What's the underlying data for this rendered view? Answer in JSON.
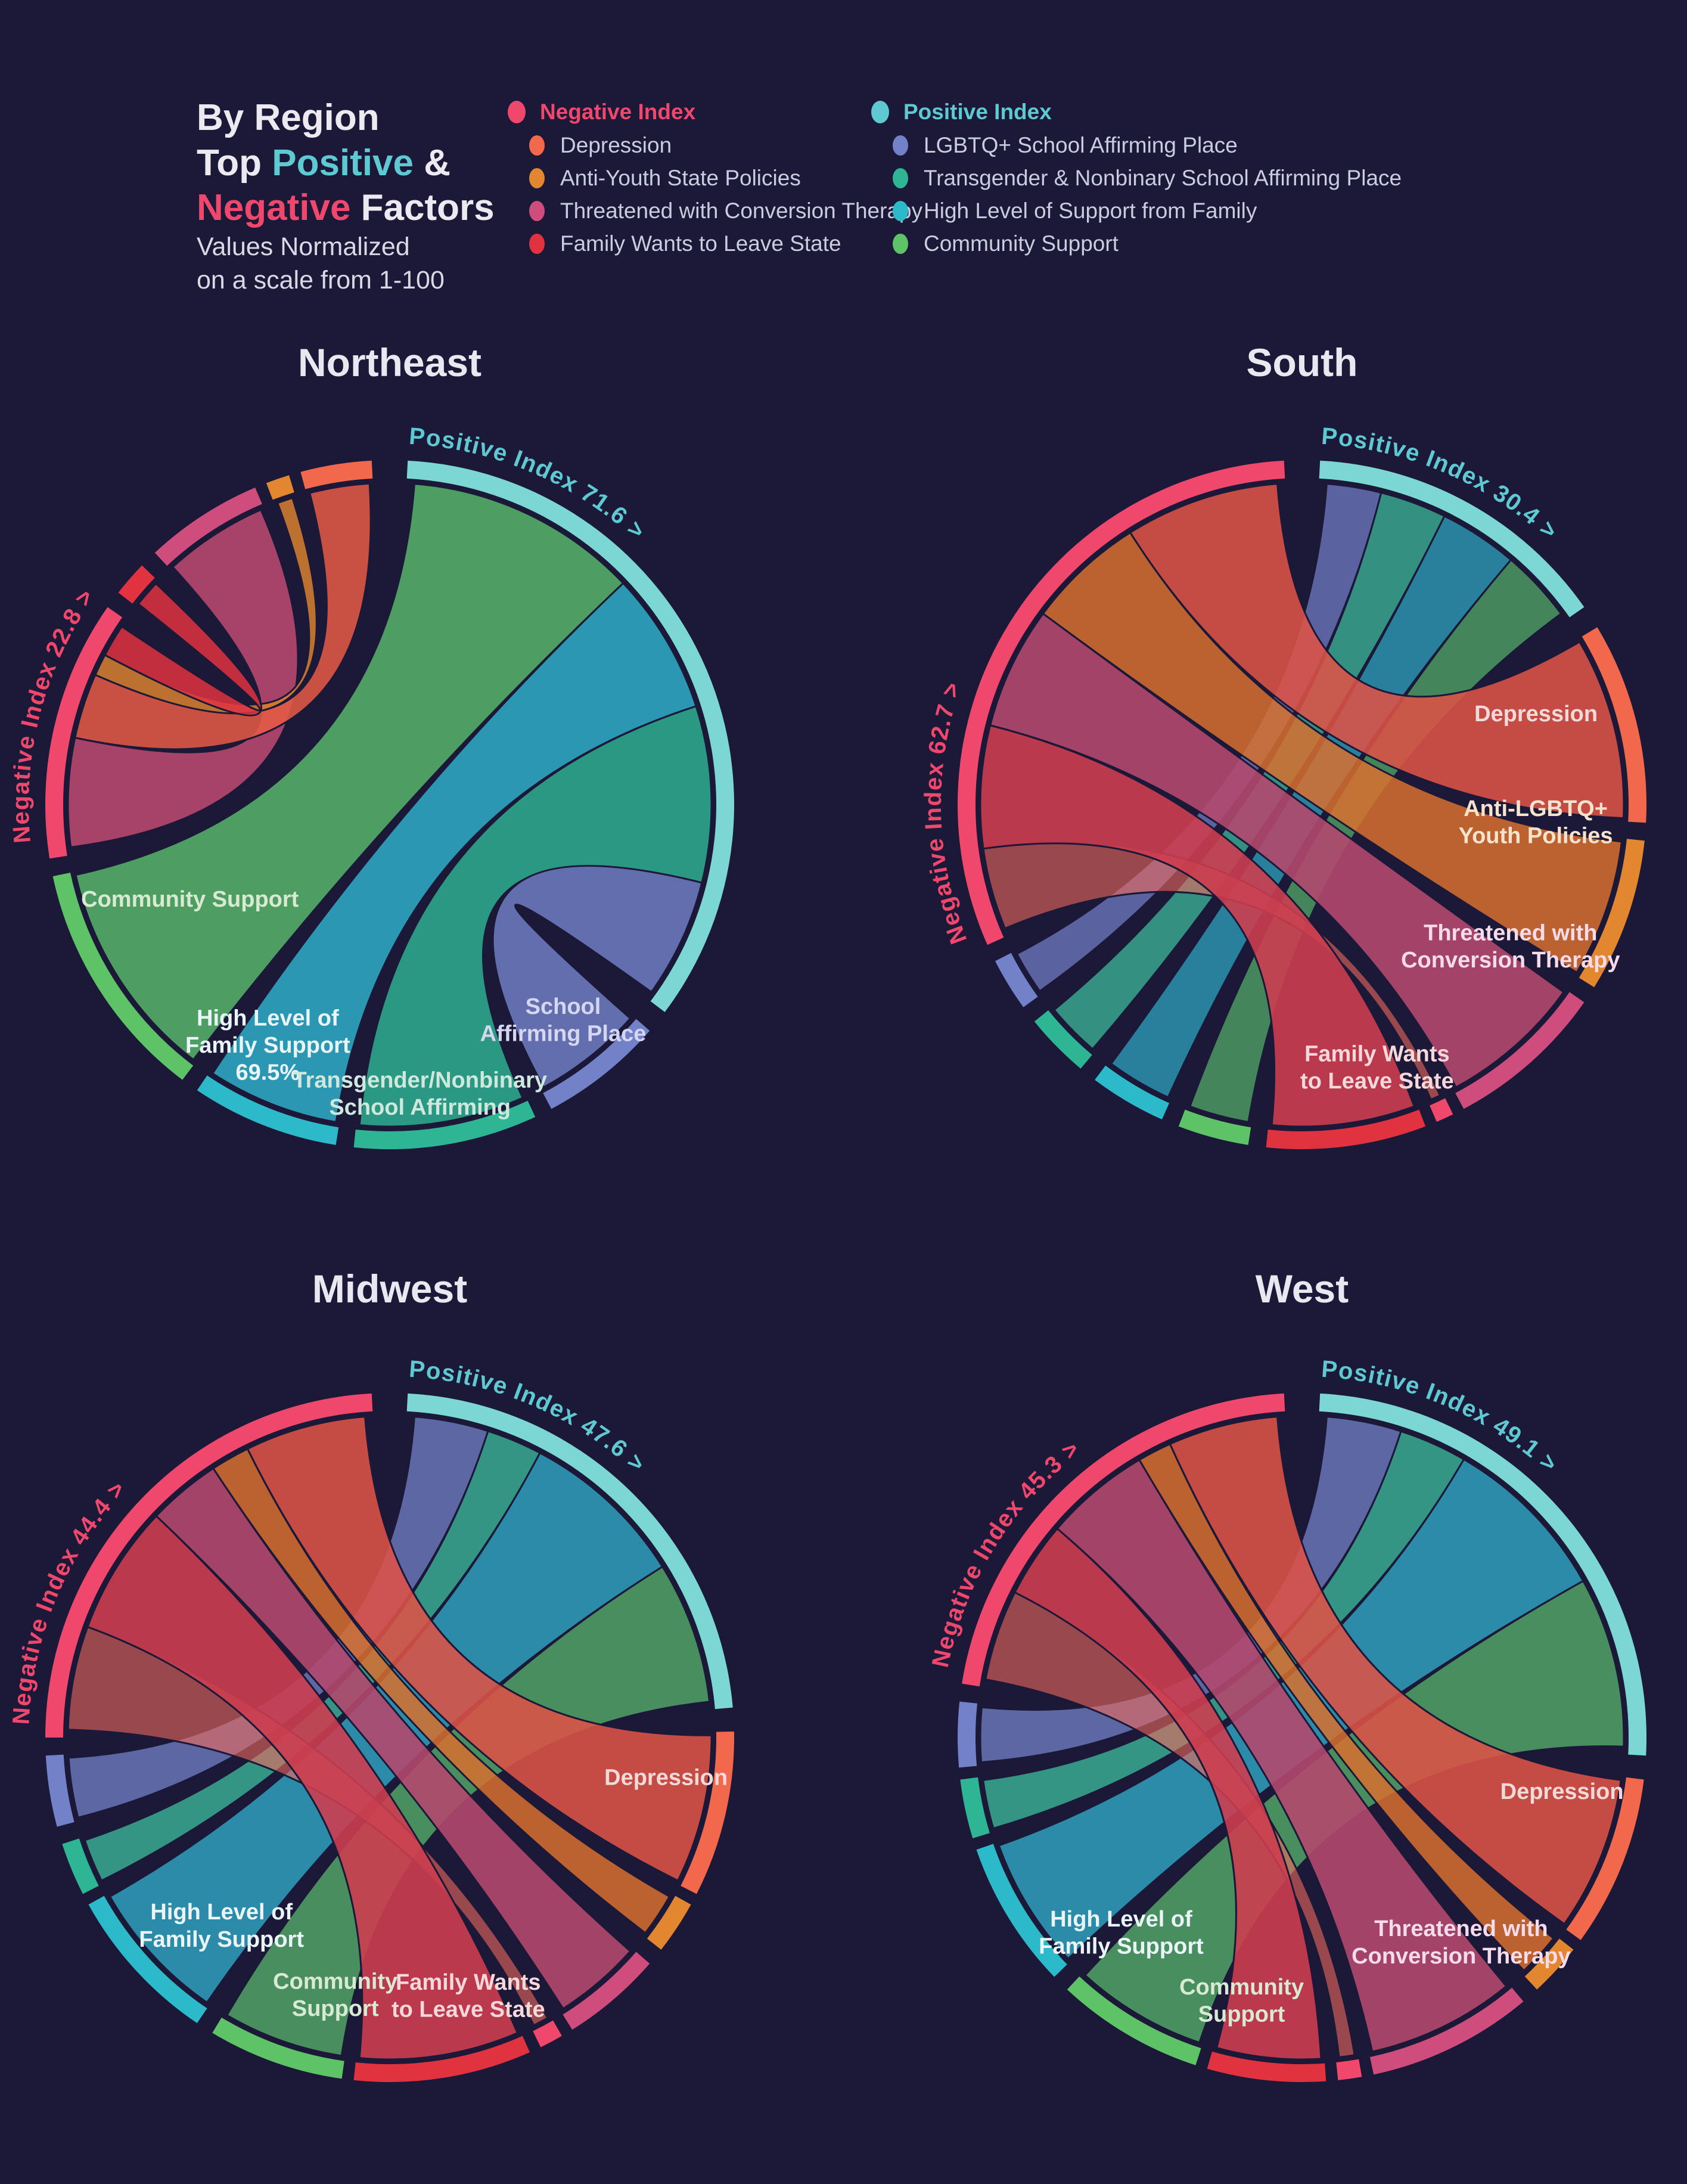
{
  "colors": {
    "background": "#1b1838",
    "teal": "#5fc9d2",
    "pink": "#f0486c",
    "white": "#eceaf0"
  },
  "header": {
    "l1": "By Region",
    "l2a": "Top ",
    "l2b": "Positive",
    "l2c": " &",
    "l3a": "Negative",
    "l3b": " Factors",
    "sub1": "Values Normalized",
    "sub2": "on a scale from 1-100"
  },
  "legend": {
    "negative": {
      "header": "Negative Index",
      "color": "#f0486c",
      "items": [
        {
          "label": "Depression",
          "color": "#f2684c"
        },
        {
          "label": "Anti-Youth State Policies",
          "color": "#e2862f"
        },
        {
          "label": "Threatened with Conversion Therapy",
          "color": "#cf4d7d"
        },
        {
          "label": "Family Wants to Leave State",
          "color": "#e0333f"
        }
      ]
    },
    "positive": {
      "header": "Positive Index",
      "color": "#5fc9d2",
      "items": [
        {
          "label": "LGBTQ+ School Affirming Place",
          "color": "#7381c8"
        },
        {
          "label": "Transgender & Nonbinary School Affirming Place",
          "color": "#2eb593"
        },
        {
          "label": "High Level of Support from Family",
          "color": "#2cb9ca"
        },
        {
          "label": "Community Support",
          "color": "#5ec266"
        }
      ]
    }
  },
  "chart_data": {
    "type": "chord",
    "title": "By Region Top Positive & Negative Factors",
    "note": "Values Normalized on a scale from 1-100",
    "regions": [
      {
        "key": "northeast",
        "name": "Northeast",
        "positive_index": 71.6,
        "negative_index": 22.8,
        "pos_label": "Positive Index 71.6 >",
        "neg_label": "Negative Index 22.8 >",
        "pos_label_start": 3,
        "neg_label_start": 264,
        "arcs": [
          {
            "id": "pos",
            "color": "#7cd7d4",
            "a0": 3,
            "a1": 127
          },
          {
            "id": "school_affirming",
            "color": "#7381c8",
            "a0": 131,
            "a1": 152
          },
          {
            "id": "transgender",
            "color": "#2eb593",
            "a0": 155,
            "a1": 186
          },
          {
            "id": "family_support",
            "color": "#2cb9ca",
            "a0": 189,
            "a1": 214
          },
          {
            "id": "community",
            "color": "#5ec266",
            "a0": 217,
            "a1": 258
          },
          {
            "id": "neg",
            "color": "#f0486c",
            "a0": 261,
            "a1": 305
          },
          {
            "id": "family_leave",
            "color": "#e0333f",
            "a0": 308,
            "a1": 314
          },
          {
            "id": "threatened",
            "color": "#cf4d7d",
            "a0": 317,
            "a1": 337
          },
          {
            "id": "anti",
            "color": "#e2862f",
            "a0": 339,
            "a1": 343
          },
          {
            "id": "depression",
            "color": "#f2684c",
            "a0": 345,
            "a1": 357
          }
        ],
        "ribbons": [
          {
            "from": "community",
            "to": "pos",
            "color": "#55b06a",
            "opacity": 0.88
          },
          {
            "from": "family_support",
            "to": "pos",
            "color": "#2fa9c4",
            "opacity": 0.88
          },
          {
            "from": "transgender",
            "to": "pos",
            "color": "#2eb593",
            "opacity": 0.82
          },
          {
            "from": "school_affirming",
            "to": "pos",
            "color": "#7381c8",
            "opacity": 0.82
          },
          {
            "from": "threatened",
            "to": "neg",
            "color": "#b3486e",
            "opacity": 0.92
          },
          {
            "from": "depression",
            "to": "neg",
            "color": "#e85c45",
            "opacity": 0.85
          },
          {
            "from": "anti",
            "to": "neg",
            "color": "#d8812f",
            "opacity": 0.85
          },
          {
            "from": "family_leave",
            "to": "neg",
            "color": "#e0333f",
            "opacity": 0.85
          }
        ],
        "labels": [
          {
            "lines": [
              "Community Support"
            ],
            "angle": 245,
            "rf": 0.64,
            "color": "#d9ead2"
          },
          {
            "lines": [
              "High Level of",
              "Family Support",
              "69.5%"
            ],
            "angle": 207,
            "rf": 0.78,
            "color": "#e9f5f9"
          },
          {
            "lines": [
              "Transgender/Nonbinary",
              "School Affirming"
            ],
            "angle": 174,
            "rf": 0.84,
            "color": "#cfe8de"
          },
          {
            "lines": [
              "School",
              "Affirming Place"
            ],
            "angle": 141,
            "rf": 0.8,
            "color": "#d4d7ef"
          }
        ]
      },
      {
        "key": "south",
        "name": "South",
        "positive_index": 30.4,
        "negative_index": 62.7,
        "pos_label": "Positive Index 30.4 >",
        "neg_label": "Negative Index 62.7 >",
        "pos_label_start": 3,
        "neg_label_start": 248,
        "arcs": [
          {
            "id": "pos",
            "color": "#7cd7d4",
            "a0": 3,
            "a1": 55
          },
          {
            "id": "depression",
            "color": "#f2684c",
            "a0": 59,
            "a1": 93
          },
          {
            "id": "anti",
            "color": "#e2862f",
            "a0": 96,
            "a1": 122
          },
          {
            "id": "threatened",
            "color": "#cf4d7d",
            "a0": 125,
            "a1": 152
          },
          {
            "id": "pinkseg",
            "color": "#f0486c",
            "a0": 154,
            "a1": 157
          },
          {
            "id": "family_leave",
            "color": "#e0333f",
            "a0": 159,
            "a1": 186
          },
          {
            "id": "community",
            "color": "#5ec266",
            "a0": 189,
            "a1": 201
          },
          {
            "id": "family_support",
            "color": "#2cb9ca",
            "a0": 204,
            "a1": 217
          },
          {
            "id": "transgender",
            "color": "#2eb593",
            "a0": 220,
            "a1": 231
          },
          {
            "id": "school_affirming",
            "color": "#7381c8",
            "a0": 234,
            "a1": 243
          },
          {
            "id": "neg",
            "color": "#f0486c",
            "a0": 246,
            "a1": 357
          }
        ],
        "ribbons": [
          {
            "from": "school_affirming",
            "to": "pos",
            "color": "#7381c8",
            "opacity": 0.72
          },
          {
            "from": "transgender",
            "to": "pos",
            "color": "#3fbf9d",
            "opacity": 0.72
          },
          {
            "from": "family_support",
            "to": "pos",
            "color": "#2fa9c4",
            "opacity": 0.72
          },
          {
            "from": "community",
            "to": "pos",
            "color": "#55b06a",
            "opacity": 0.72
          },
          {
            "from": "pinkseg",
            "to": "neg",
            "color": "#ef6a5e",
            "opacity": 0.6,
            "weight": 6
          },
          {
            "from": "family_leave",
            "to": "neg",
            "color": "#cc3d50",
            "opacity": 0.9
          },
          {
            "from": "threatened",
            "to": "neg",
            "color": "#b3486e",
            "opacity": 0.9
          },
          {
            "from": "anti",
            "to": "neg",
            "color": "#d8702f",
            "opacity": 0.85
          },
          {
            "from": "depression",
            "to": "neg",
            "color": "#dd5247",
            "opacity": 0.88
          }
        ],
        "labels": [
          {
            "lines": [
              "Depression"
            ],
            "angle": 68.5,
            "rf": 0.73,
            "color": "#f3d9d8"
          },
          {
            "lines": [
              "Anti-LGBTQ+",
              "Youth Policies"
            ],
            "angle": 94,
            "rf": 0.68,
            "color": "#f5e3cd"
          },
          {
            "lines": [
              "Threatened with",
              "Conversion Therapy"
            ],
            "angle": 124,
            "rf": 0.73,
            "color": "#f6dcea"
          },
          {
            "lines": [
              "Family Wants",
              "to Leave State"
            ],
            "angle": 164,
            "rf": 0.79,
            "color": "#f6d8da"
          }
        ]
      },
      {
        "key": "midwest",
        "name": "Midwest",
        "positive_index": 47.6,
        "negative_index": 44.4,
        "pos_label": "Positive Index 47.6 >",
        "neg_label": "Negative Index 44.4 >",
        "pos_label_start": 3,
        "neg_label_start": 272,
        "arcs": [
          {
            "id": "pos",
            "color": "#7cd7d4",
            "a0": 3,
            "a1": 85
          },
          {
            "id": "depression",
            "color": "#f2684c",
            "a0": 89,
            "a1": 117
          },
          {
            "id": "anti",
            "color": "#e2862f",
            "a0": 119,
            "a1": 128
          },
          {
            "id": "threatened",
            "color": "#cf4d7d",
            "a0": 131,
            "a1": 148
          },
          {
            "id": "pinkseg",
            "color": "#f0486c",
            "a0": 150,
            "a1": 154
          },
          {
            "id": "family_leave",
            "color": "#e0333f",
            "a0": 156,
            "a1": 186
          },
          {
            "id": "community",
            "color": "#5ec266",
            "a0": 188,
            "a1": 211
          },
          {
            "id": "family_support",
            "color": "#2cb9ca",
            "a0": 214,
            "a1": 241
          },
          {
            "id": "transgender",
            "color": "#2eb593",
            "a0": 243,
            "a1": 252
          },
          {
            "id": "school_affirming",
            "color": "#7381c8",
            "a0": 255,
            "a1": 267
          },
          {
            "id": "neg",
            "color": "#f0486c",
            "a0": 270,
            "a1": 357
          }
        ],
        "ribbons": [
          {
            "from": "school_affirming",
            "to": "pos",
            "color": "#7381c8",
            "opacity": 0.75
          },
          {
            "from": "transgender",
            "to": "pos",
            "color": "#3fbf9d",
            "opacity": 0.75
          },
          {
            "from": "family_support",
            "to": "pos",
            "color": "#2fa9c4",
            "opacity": 0.8
          },
          {
            "from": "community",
            "to": "pos",
            "color": "#55b06a",
            "opacity": 0.78
          },
          {
            "from": "pinkseg",
            "to": "neg",
            "color": "#ef6a5e",
            "opacity": 0.6,
            "weight": 6
          },
          {
            "from": "family_leave",
            "to": "neg",
            "color": "#cc3d50",
            "opacity": 0.9
          },
          {
            "from": "threatened",
            "to": "neg",
            "color": "#b3486e",
            "opacity": 0.9
          },
          {
            "from": "anti",
            "to": "neg",
            "color": "#d8702f",
            "opacity": 0.85
          },
          {
            "from": "depression",
            "to": "neg",
            "color": "#dd5247",
            "opacity": 0.88
          }
        ],
        "labels": [
          {
            "lines": [
              "Depression"
            ],
            "angle": 98,
            "rf": 0.81,
            "color": "#f3d9d8"
          },
          {
            "lines": [
              "High Level of",
              "Family Support"
            ],
            "angle": 222,
            "rf": 0.73,
            "color": "#e9f5f9"
          },
          {
            "lines": [
              "Community",
              "Support"
            ],
            "angle": 192,
            "rf": 0.76,
            "color": "#d9ead2"
          },
          {
            "lines": [
              "Family Wants",
              "to Leave State"
            ],
            "angle": 163,
            "rf": 0.78,
            "color": "#f6d8da"
          }
        ]
      },
      {
        "key": "west",
        "name": "West",
        "positive_index": 49.1,
        "negative_index": 45.3,
        "pos_label": "Positive Index 49.1 >",
        "neg_label": "Negative Index 45.3 >",
        "pos_label_start": 3,
        "neg_label_start": 281,
        "arcs": [
          {
            "id": "pos",
            "color": "#7cd7d4",
            "a0": 3,
            "a1": 93
          },
          {
            "id": "depression",
            "color": "#f2684c",
            "a0": 97,
            "a1": 126
          },
          {
            "id": "anti",
            "color": "#e2862f",
            "a0": 128,
            "a1": 137
          },
          {
            "id": "threatened",
            "color": "#cf4d7d",
            "a0": 140,
            "a1": 168
          },
          {
            "id": "pinkseg",
            "color": "#f0486c",
            "a0": 170,
            "a1": 174
          },
          {
            "id": "family_leave",
            "color": "#e0333f",
            "a0": 176,
            "a1": 196
          },
          {
            "id": "community",
            "color": "#5ec266",
            "a0": 198,
            "a1": 223
          },
          {
            "id": "family_support",
            "color": "#2cb9ca",
            "a0": 226,
            "a1": 251
          },
          {
            "id": "transgender",
            "color": "#2eb593",
            "a0": 253,
            "a1": 263
          },
          {
            "id": "school_affirming",
            "color": "#7381c8",
            "a0": 265,
            "a1": 276
          },
          {
            "id": "neg",
            "color": "#f0486c",
            "a0": 279,
            "a1": 357
          }
        ],
        "ribbons": [
          {
            "from": "school_affirming",
            "to": "pos",
            "color": "#7381c8",
            "opacity": 0.75
          },
          {
            "from": "transgender",
            "to": "pos",
            "color": "#3fbf9d",
            "opacity": 0.75
          },
          {
            "from": "family_support",
            "to": "pos",
            "color": "#2fa9c4",
            "opacity": 0.8
          },
          {
            "from": "community",
            "to": "pos",
            "color": "#55b06a",
            "opacity": 0.78
          },
          {
            "from": "pinkseg",
            "to": "neg",
            "color": "#ef6a5e",
            "opacity": 0.6,
            "weight": 6
          },
          {
            "from": "family_leave",
            "to": "neg",
            "color": "#cc3d50",
            "opacity": 0.9
          },
          {
            "from": "threatened",
            "to": "neg",
            "color": "#b3486e",
            "opacity": 0.9
          },
          {
            "from": "anti",
            "to": "neg",
            "color": "#d8702f",
            "opacity": 0.85
          },
          {
            "from": "depression",
            "to": "neg",
            "color": "#dd5247",
            "opacity": 0.88
          }
        ],
        "labels": [
          {
            "lines": [
              "Depression"
            ],
            "angle": 101.5,
            "rf": 0.77,
            "color": "#f3d9d8"
          },
          {
            "lines": [
              "High Level of",
              "Family Support"
            ],
            "angle": 223,
            "rf": 0.77,
            "color": "#e9f5f9"
          },
          {
            "lines": [
              "Community",
              "Support"
            ],
            "angle": 193,
            "rf": 0.78,
            "color": "#d9ead2"
          },
          {
            "lines": [
              "Threatened with",
              "Conversion Therapy"
            ],
            "angle": 142,
            "rf": 0.75,
            "color": "#f6dcea"
          }
        ]
      }
    ]
  }
}
